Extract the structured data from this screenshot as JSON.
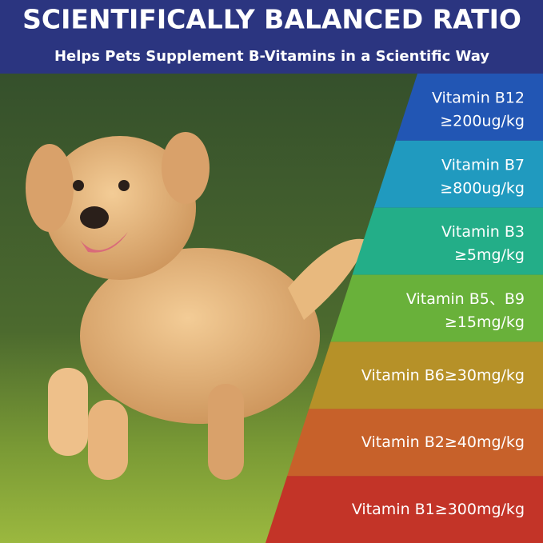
{
  "header": {
    "title": "SCIENTIFICALLY BALANCED RATIO",
    "subtitle": "Helps Pets Supplement B-Vitamins in a Scientific Way"
  },
  "bands": [
    {
      "label": "Vitamin B12",
      "value": "≥200ug/kg",
      "color": "#2256b4"
    },
    {
      "label": "Vitamin B7",
      "value": "≥800ug/kg",
      "color": "#209abf"
    },
    {
      "label": "Vitamin B3",
      "value": "≥5mg/kg",
      "color": "#23ae88"
    },
    {
      "label": "Vitamin B5、B9",
      "value": "≥15mg/kg",
      "color": "#69b13a"
    },
    {
      "label": "Vitamin B6",
      "value": "≥30mg/kg",
      "color": "#b69128"
    },
    {
      "label": "Vitamin B2",
      "value": "≥40mg/kg",
      "color": "#c7612a"
    },
    {
      "label": "Vitamin B1",
      "value": "≥300mg/kg",
      "color": "#c33428"
    }
  ]
}
